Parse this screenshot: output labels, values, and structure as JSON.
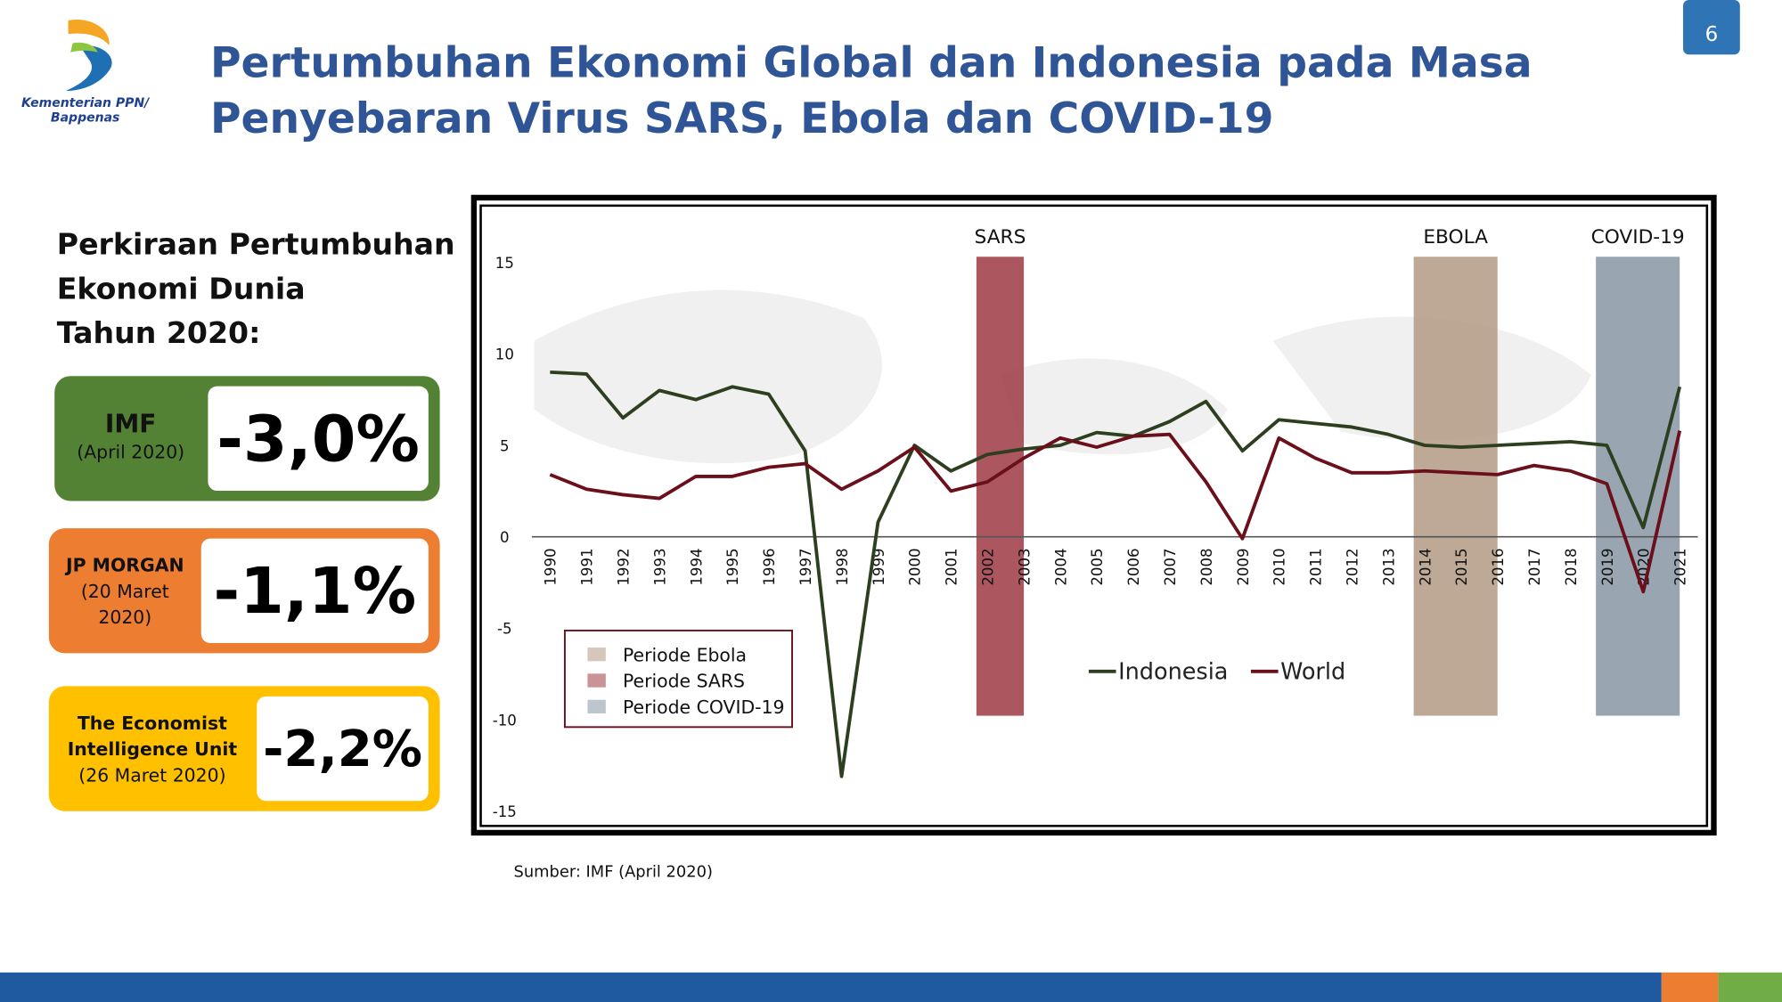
{
  "header": {
    "logo_text": [
      "Kementerian PPN/",
      "Bappenas"
    ],
    "title": [
      "Pertumbuhan Ekonomi Global dan Indonesia pada Masa",
      "Penyebaran Virus SARS, Ebola dan COVID-19"
    ],
    "page_number": "6"
  },
  "panel": {
    "heading": [
      "Perkiraan Pertumbuhan",
      "Ekonomi Dunia",
      "Tahun 2020:"
    ],
    "cards": [
      {
        "name": [
          "IMF"
        ],
        "note": [
          "(April 2020)"
        ],
        "figure": "-3,0%",
        "color": "#548235"
      },
      {
        "name": [
          "JP MORGAN"
        ],
        "note": [
          "(20 Maret",
          "2020)"
        ],
        "figure": "-1,1%",
        "color": "#ed7d31"
      },
      {
        "name": [
          "The Economist",
          "Intelligence Unit"
        ],
        "note": [
          "(26 Maret 2020)"
        ],
        "figure": "-2,2%",
        "color": "#ffc000"
      }
    ]
  },
  "chart_data": {
    "type": "line",
    "x": [
      1990,
      1991,
      1992,
      1993,
      1994,
      1995,
      1996,
      1997,
      1998,
      1999,
      2000,
      2001,
      2002,
      2003,
      2004,
      2005,
      2006,
      2007,
      2008,
      2009,
      2010,
      2011,
      2012,
      2013,
      2014,
      2015,
      2016,
      2017,
      2018,
      2019,
      2020,
      2021
    ],
    "xlim": [
      1990,
      2021
    ],
    "ylim": [
      -15,
      15
    ],
    "yticks": [
      -15,
      -10,
      -5,
      0,
      5,
      10,
      15
    ],
    "series": [
      {
        "name": "Indonesia",
        "color": "#2d3f1f",
        "values": [
          9.0,
          8.9,
          6.5,
          8.0,
          7.5,
          8.2,
          7.8,
          4.7,
          -13.1,
          0.8,
          5.0,
          3.6,
          4.5,
          4.8,
          5.0,
          5.7,
          5.5,
          6.3,
          7.4,
          4.7,
          6.4,
          6.2,
          6.0,
          5.6,
          5.0,
          4.9,
          5.0,
          5.1,
          5.2,
          5.0,
          0.5,
          8.2
        ]
      },
      {
        "name": "World",
        "color": "#6b0f1a",
        "values": [
          3.4,
          2.6,
          2.3,
          2.1,
          3.3,
          3.3,
          3.8,
          4.0,
          2.6,
          3.6,
          4.9,
          2.5,
          3.0,
          4.3,
          5.4,
          4.9,
          5.5,
          5.6,
          3.0,
          -0.1,
          5.4,
          4.3,
          3.5,
          3.5,
          3.6,
          3.5,
          3.4,
          3.9,
          3.6,
          2.9,
          -3.0,
          5.8
        ]
      }
    ],
    "periods": [
      {
        "label": "SARS",
        "legend": "Periode SARS",
        "start": 2002,
        "end": 2003,
        "color": "#9e3a44"
      },
      {
        "label": "EBOLA",
        "legend": "Periode Ebola",
        "start": 2014,
        "end": 2016,
        "color": "#b39a84"
      },
      {
        "label": "COVID-19",
        "legend": "Periode COVID-19",
        "start": 2019,
        "end": 2021,
        "color": "#8797a5"
      }
    ],
    "period_legend_order": [
      1,
      0,
      2
    ]
  },
  "source": "Sumber: IMF (April 2020)"
}
